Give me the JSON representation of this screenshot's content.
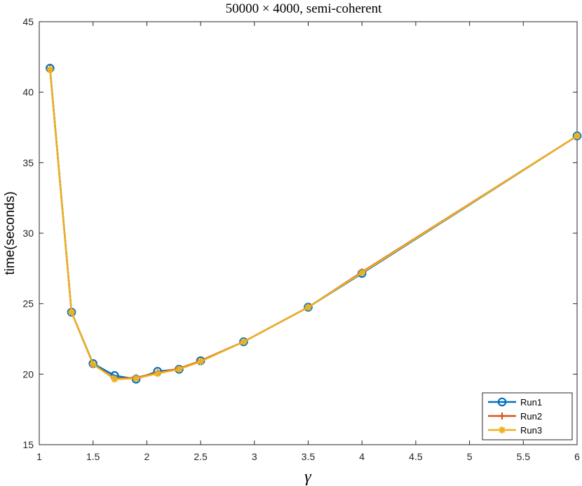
{
  "chart_data": {
    "type": "line",
    "title": "50000 × 4000, semi-coherent",
    "xlabel": "γ",
    "ylabel": "time(seconds)",
    "xlim": [
      1,
      6
    ],
    "ylim": [
      15,
      45
    ],
    "xticks": [
      1,
      1.5,
      2,
      2.5,
      3,
      3.5,
      4,
      4.5,
      5,
      5.5,
      6
    ],
    "xtick_labels": [
      "1",
      "1.5",
      "2",
      "2.5",
      "3",
      "3.5",
      "4",
      "4.5",
      "5",
      "5.5",
      "6"
    ],
    "yticks": [
      15,
      20,
      25,
      30,
      35,
      40,
      45
    ],
    "ytick_labels": [
      "15",
      "20",
      "25",
      "30",
      "35",
      "40",
      "45"
    ],
    "legend_position": "bottom-right",
    "grid": false,
    "x": [
      1.1,
      1.3,
      1.5,
      1.7,
      1.9,
      2.1,
      2.3,
      2.5,
      2.9,
      3.5,
      4,
      6
    ],
    "series": [
      {
        "name": "Run1",
        "color": "#0072BD",
        "marker": "circle",
        "values": [
          41.7,
          24.4,
          20.75,
          19.9,
          19.65,
          20.2,
          20.35,
          20.95,
          22.3,
          24.75,
          27.15,
          36.9
        ]
      },
      {
        "name": "Run2",
        "color": "#D95319",
        "marker": "plus",
        "values": [
          41.65,
          24.4,
          20.7,
          19.7,
          19.75,
          20.1,
          20.4,
          20.95,
          22.3,
          24.75,
          27.25,
          36.9
        ]
      },
      {
        "name": "Run3",
        "color": "#EDB120",
        "marker": "asterisk",
        "values": [
          41.6,
          24.4,
          20.7,
          19.65,
          19.7,
          20.05,
          20.35,
          20.9,
          22.3,
          24.75,
          27.2,
          36.9
        ]
      }
    ]
  }
}
